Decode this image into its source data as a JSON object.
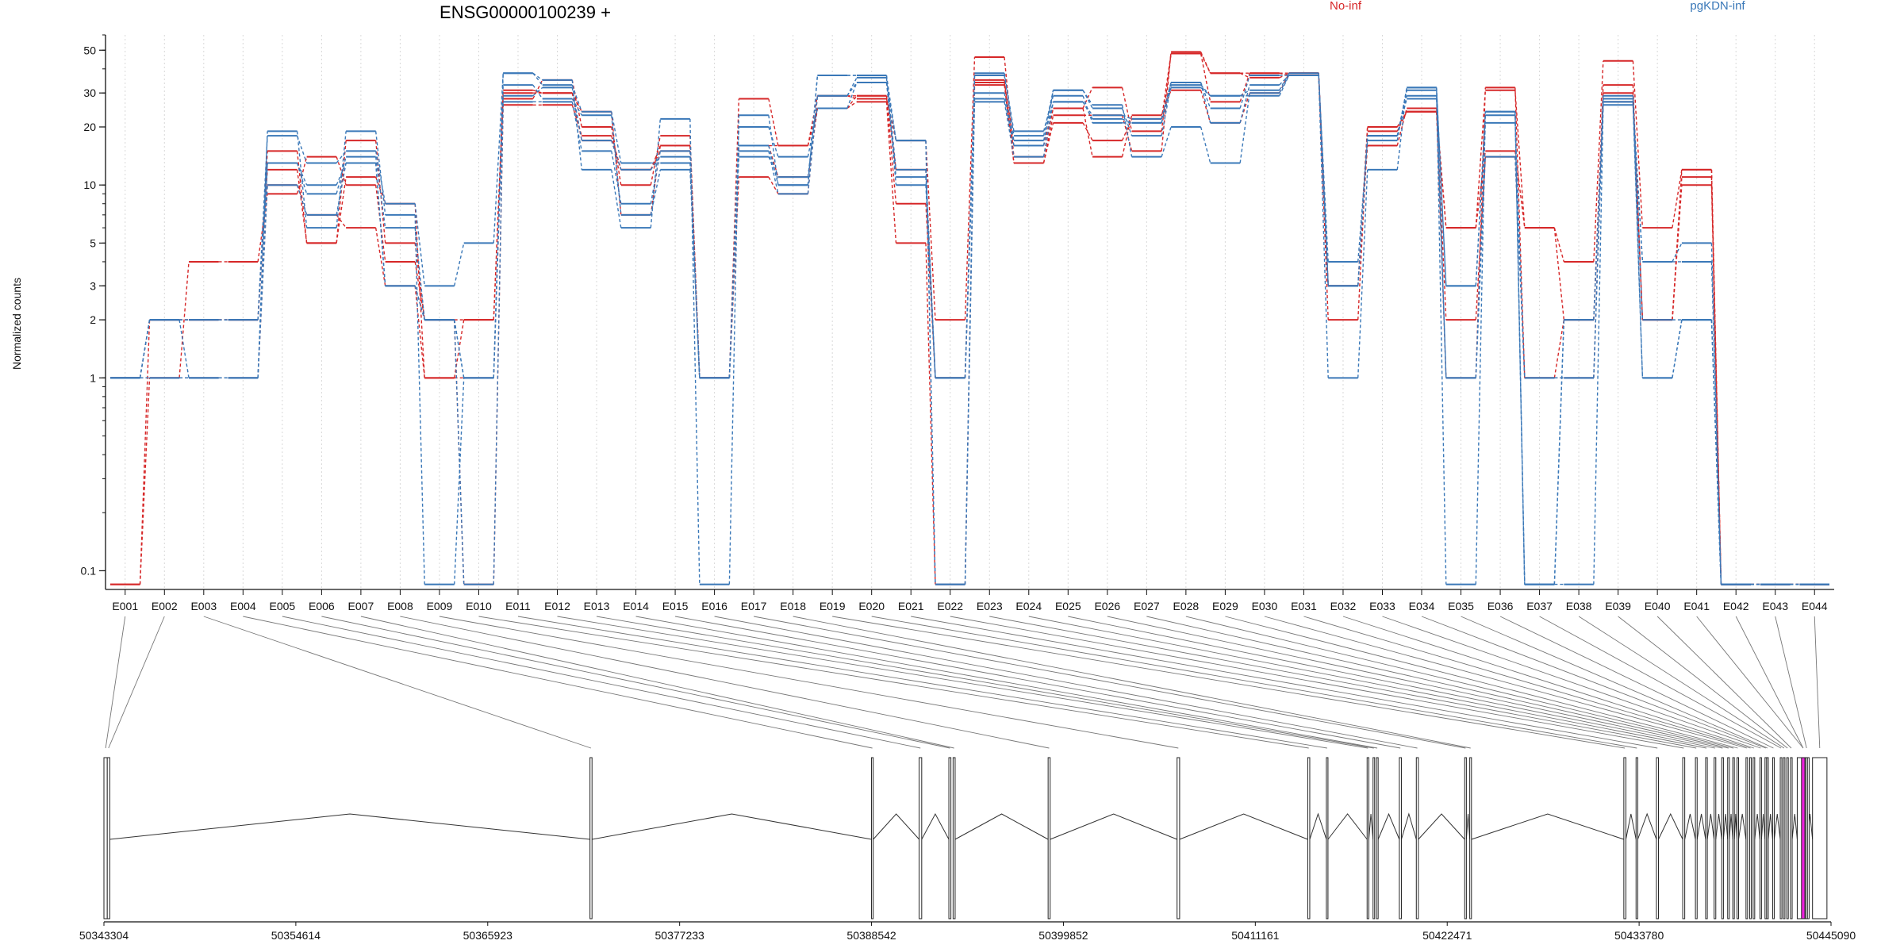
{
  "chart_data": {
    "type": "line",
    "title": "ENSG00000100239 +",
    "ylabel": "Normalized counts",
    "y_scale": "log",
    "ylim": [
      0.08,
      60
    ],
    "y_ticks": [
      "0.1",
      "1",
      "2",
      "3",
      "5",
      "10",
      "20",
      "30",
      "50"
    ],
    "grid": "vertical dotted",
    "legend": [
      {
        "name": "No-inf",
        "color": "#d62728"
      },
      {
        "name": "pgKDN-inf",
        "color": "#3a78b8"
      }
    ],
    "categories": [
      "E001",
      "E002",
      "E003",
      "E004",
      "E005",
      "E006",
      "E007",
      "E008",
      "E009",
      "E010",
      "E011",
      "E012",
      "E013",
      "E014",
      "E015",
      "E016",
      "E017",
      "E018",
      "E019",
      "E020",
      "E021",
      "E022",
      "E023",
      "E024",
      "E025",
      "E026",
      "E027",
      "E028",
      "E029",
      "E030",
      "E031",
      "E032",
      "E033",
      "E034",
      "E035",
      "E036",
      "E037",
      "E038",
      "E039",
      "E040",
      "E041",
      "E042",
      "E043",
      "E044"
    ],
    "series": [
      {
        "group": "No-inf",
        "values": [
          1,
          2,
          2,
          2,
          12,
          5,
          17,
          5,
          2,
          2,
          30,
          30,
          24,
          7,
          16,
          1,
          28,
          16,
          29,
          28,
          17,
          2,
          46,
          14,
          25,
          32,
          19,
          48,
          38,
          36,
          38,
          3,
          20,
          24,
          6,
          31,
          6,
          4,
          44,
          6,
          12,
          0.085,
          0.085,
          0.085
        ]
      },
      {
        "group": "No-inf",
        "values": [
          0.085,
          2,
          2,
          2,
          15,
          5,
          11,
          8,
          1,
          2,
          28,
          35,
          20,
          10,
          18,
          1,
          11,
          9,
          29,
          29,
          8,
          1,
          35,
          13,
          21,
          17,
          22,
          48,
          27,
          38,
          38,
          2,
          19,
          24,
          1,
          32,
          1,
          1,
          30,
          2,
          12,
          0.085,
          0.085,
          0.085
        ]
      },
      {
        "group": "No-inf",
        "values": [
          1,
          1,
          4,
          4,
          9,
          14,
          10,
          4,
          2,
          0.085,
          26,
          26,
          18,
          12,
          15,
          1,
          16,
          11,
          25,
          27,
          5,
          0.085,
          33,
          13,
          23,
          23,
          15,
          49,
          38,
          38,
          37,
          3,
          20,
          24,
          6,
          15,
          6,
          2,
          33,
          2,
          10,
          0.085,
          0.085,
          0.085
        ]
      },
      {
        "group": "No-inf",
        "values": [
          0.085,
          1,
          1,
          1,
          10,
          7,
          6,
          3,
          1,
          1,
          31,
          30,
          17,
          12,
          16,
          1,
          16,
          16,
          25,
          29,
          12,
          1,
          34,
          16,
          25,
          14,
          23,
          31,
          21,
          30,
          38,
          3,
          16,
          25,
          2,
          14,
          1,
          2,
          27,
          2,
          11,
          0.085,
          0.085,
          0.085
        ]
      },
      {
        "group": "pgKDN-inf",
        "values": [
          1,
          1,
          1,
          1,
          13,
          10,
          13,
          3,
          2,
          1,
          29,
          32,
          17,
          12,
          14,
          1,
          16,
          10,
          37,
          37,
          12,
          1,
          37,
          18,
          31,
          25,
          18,
          33,
          29,
          31,
          38,
          3,
          18,
          28,
          1,
          21,
          1,
          1,
          28,
          2,
          2,
          0.085,
          0.085,
          0.085
        ]
      },
      {
        "group": "pgKDN-inf",
        "values": [
          1,
          1,
          1,
          1,
          19,
          6,
          19,
          7,
          0.085,
          1,
          38,
          35,
          12,
          6,
          22,
          0.085,
          23,
          10,
          37,
          37,
          17,
          0.085,
          28,
          16,
          31,
          26,
          14,
          20,
          13,
          30,
          37,
          1,
          12,
          32,
          0.085,
          24,
          0.085,
          0.085,
          26,
          1,
          2,
          0.085,
          0.085,
          0.085
        ]
      },
      {
        "group": "pgKDN-inf",
        "values": [
          1,
          2,
          2,
          2,
          18,
          13,
          15,
          8,
          3,
          5,
          38,
          33,
          24,
          13,
          13,
          1,
          15,
          9,
          29,
          34,
          17,
          0.085,
          38,
          19,
          29,
          21,
          21,
          34,
          25,
          37,
          37,
          4,
          17,
          32,
          3,
          24,
          0.085,
          2,
          27,
          4,
          5,
          0.085,
          0.085,
          0.085
        ]
      },
      {
        "group": "pgKDN-inf",
        "values": [
          1,
          2,
          2,
          2,
          13,
          9,
          14,
          6,
          2,
          1,
          33,
          28,
          23,
          7,
          12,
          1,
          20,
          14,
          25,
          34,
          11,
          1,
          30,
          17,
          27,
          22,
          21,
          32,
          29,
          29,
          37,
          3,
          18,
          31,
          3,
          23,
          0.085,
          2,
          29,
          1,
          2,
          0.085,
          0.085,
          0.085
        ]
      },
      {
        "group": "pgKDN-inf",
        "values": [
          1,
          2,
          1,
          1,
          10,
          7,
          13,
          3,
          2,
          0.085,
          27,
          27,
          15,
          8,
          15,
          1,
          14,
          11,
          29,
          36,
          10,
          1,
          27,
          14,
          27,
          23,
          22,
          34,
          21,
          33,
          37,
          3,
          18,
          29,
          1,
          14,
          1,
          1,
          27,
          4,
          4,
          0.085,
          0.085,
          0.085
        ]
      }
    ],
    "gene_model": {
      "coordinate_labels": [
        "50343304",
        "50354614",
        "50365923",
        "50377233",
        "50388542",
        "50399852",
        "50411161",
        "50422471",
        "50433780",
        "50445090"
      ],
      "coordinate_start": 50343304,
      "coordinate_end": 50445090,
      "exon_positions": [
        50343304,
        50343500,
        50371950,
        50388542,
        50391350,
        50393100,
        50393350,
        50398950,
        50406550,
        50414250,
        50415350,
        50417750,
        50418100,
        50418300,
        50419650,
        50420650,
        50423500,
        50423800,
        50432880,
        50433600,
        50434800,
        50436350,
        50437100,
        50437700,
        50438200,
        50438650,
        50439000,
        50439300,
        50439550,
        50440080,
        50440300,
        50440500,
        50440900,
        50441200,
        50441300,
        50441650,
        50442100,
        50442280,
        50442480,
        50442700,
        50443100,
        50443350,
        50443600,
        50444000
      ],
      "exon_widths": [
        200,
        150,
        120,
        100,
        150,
        120,
        120,
        120,
        150,
        120,
        80,
        100,
        80,
        100,
        120,
        120,
        100,
        100,
        120,
        100,
        120,
        120,
        100,
        100,
        100,
        100,
        100,
        60,
        60,
        60,
        60,
        60,
        60,
        60,
        60,
        60,
        60,
        60,
        60,
        100,
        700,
        200,
        100,
        850
      ],
      "highlight_exon": "E042",
      "highlight_color": "#ee22dd"
    }
  }
}
